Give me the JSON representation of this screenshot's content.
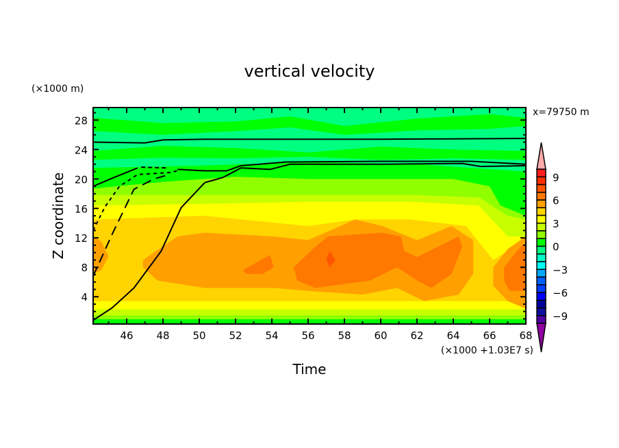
{
  "chart_data": {
    "type": "contour",
    "title": "vertical velocity",
    "xlabel": "Time",
    "ylabel": "Z coordinate",
    "x_unit_note": "(×1000 +1.03E7 s)",
    "y_unit_note": "(×1000 m)",
    "location_note": "x=79750 m",
    "xlim": [
      44.15,
      68
    ],
    "ylim": [
      0.3,
      29.7
    ],
    "x_ticks": [
      46,
      48,
      50,
      52,
      54,
      56,
      58,
      60,
      62,
      64,
      66,
      68
    ],
    "y_ticks": [
      4,
      8,
      12,
      16,
      20,
      24,
      28
    ],
    "x_tick_labels": [
      "46",
      "48",
      "50",
      "52",
      "54",
      "56",
      "58",
      "60",
      "62",
      "64",
      "66",
      "68"
    ],
    "y_tick_labels": [
      "4",
      "8",
      "12",
      "16",
      "20",
      "24",
      "28"
    ],
    "colorbar": {
      "levels_top_down": [
        10,
        9,
        8,
        7,
        6,
        5,
        4,
        3,
        2,
        1,
        0,
        -1,
        -2,
        -3,
        -4,
        -5,
        -6,
        -7,
        -8,
        -9,
        -10
      ],
      "colors_top_down": [
        "#ff2020",
        "#ff3000",
        "#ff5500",
        "#ff7800",
        "#ffa000",
        "#ffd400",
        "#ffff00",
        "#c8ff00",
        "#90ff00",
        "#00ff00",
        "#00ff80",
        "#00ffc8",
        "#00ffff",
        "#00aaff",
        "#0060ff",
        "#0040ff",
        "#0000ff",
        "#0000a0",
        "#1010a0",
        "#5000a0"
      ],
      "over_color": "#ffaaaa",
      "under_color": "#9000a0",
      "labels": [
        "9",
        "6",
        "3",
        "0",
        "−3",
        "−6",
        "−9"
      ],
      "label_values": [
        9,
        6,
        3,
        0,
        -3,
        -6,
        -9
      ]
    },
    "background_value_color": "#00ff00",
    "filled_regions": [
      {
        "value": "0..1",
        "color": "#00ff80",
        "top": [
          [
            44.15,
            29.7
          ],
          [
            68,
            29.7
          ]
        ],
        "bottom": [
          [
            44.15,
            21.5
          ],
          [
            50,
            21.8
          ],
          [
            56,
            22.3
          ],
          [
            62,
            22
          ],
          [
            68,
            21
          ]
        ]
      },
      {
        "value": "-1..0 patch",
        "color": "#00ff00",
        "top": [
          [
            44.15,
            28.3
          ],
          [
            48,
            27.6
          ],
          [
            52,
            27.8
          ],
          [
            55,
            28.5
          ],
          [
            58,
            27.2
          ],
          [
            62,
            28.2
          ],
          [
            66,
            28.8
          ],
          [
            68,
            28.3
          ]
        ],
        "bottom": [
          [
            44.15,
            26.5
          ],
          [
            48,
            26.0
          ],
          [
            52,
            26.5
          ],
          [
            55,
            27
          ],
          [
            58,
            26
          ],
          [
            62,
            26.6
          ],
          [
            66,
            26.8
          ],
          [
            68,
            27.2
          ]
        ]
      },
      {
        "value": "-1..0 patch",
        "color": "#00ff00",
        "top": [
          [
            44.15,
            23.8
          ],
          [
            48,
            24.5
          ],
          [
            52,
            24.2
          ],
          [
            56,
            23.6
          ],
          [
            60,
            24.4
          ],
          [
            64,
            24
          ],
          [
            68,
            23.8
          ]
        ],
        "bottom": [
          [
            44.15,
            22.6
          ],
          [
            48,
            22.9
          ],
          [
            52,
            22.8
          ],
          [
            56,
            23
          ],
          [
            60,
            22.6
          ],
          [
            64,
            22.8
          ],
          [
            68,
            22.6
          ]
        ]
      },
      {
        "value": "1..2",
        "color": "#90ff00",
        "top": [
          [
            44.15,
            18.7
          ],
          [
            48,
            19.6
          ],
          [
            52,
            20.3
          ],
          [
            56,
            20
          ],
          [
            60,
            20
          ],
          [
            64,
            20
          ],
          [
            66,
            19
          ],
          [
            66.6,
            16.4
          ],
          [
            68,
            15
          ]
        ],
        "bottom": [
          [
            44.15,
            0.95
          ],
          [
            68,
            0.95
          ]
        ]
      },
      {
        "value": "2..3",
        "color": "#c8ff00",
        "top": [
          [
            44.15,
            17.8
          ],
          [
            50,
            17.8
          ],
          [
            56,
            17.8
          ],
          [
            62,
            17.8
          ],
          [
            65.4,
            17.5
          ],
          [
            67,
            15
          ],
          [
            68,
            14.5
          ]
        ],
        "bottom": [
          [
            44.15,
            1.5
          ],
          [
            68,
            1.5
          ]
        ]
      },
      {
        "value": "3..4",
        "color": "#ffff00",
        "top": [
          [
            44.15,
            16.4
          ],
          [
            50,
            16.6
          ],
          [
            56,
            16.9
          ],
          [
            61.7,
            16.9
          ],
          [
            65.4,
            16.4
          ],
          [
            67,
            12.2
          ],
          [
            68,
            12.2
          ]
        ],
        "bottom": [
          [
            44.15,
            2.3
          ],
          [
            68,
            2.3
          ]
        ]
      },
      {
        "value": "4..5",
        "color": "#ffd400",
        "top": [
          [
            44.15,
            14.5
          ],
          [
            50.3,
            15
          ],
          [
            56,
            13.6
          ],
          [
            58.6,
            14.5
          ],
          [
            61.7,
            14.5
          ],
          [
            64.7,
            13.6
          ],
          [
            66.2,
            9
          ],
          [
            67.7,
            11.3
          ],
          [
            68,
            11.3
          ]
        ],
        "bottom": [
          [
            44.15,
            3.4
          ],
          [
            68,
            3.4
          ]
        ]
      },
      {
        "value": "5..6",
        "color": "#ffa000",
        "polygon": [
          [
            44.15,
            12.2
          ],
          [
            44.6,
            11.5
          ],
          [
            45,
            9.5
          ],
          [
            44.6,
            7.6
          ],
          [
            44.15,
            7.1
          ]
        ]
      },
      {
        "value": "5..6",
        "color": "#ffa000",
        "polygon": [
          [
            46.9,
            9
          ],
          [
            48.8,
            12.2
          ],
          [
            50.3,
            12.7
          ],
          [
            54.1,
            12.2
          ],
          [
            56,
            11.7
          ],
          [
            58.6,
            14.5
          ],
          [
            60.1,
            13.6
          ],
          [
            62,
            11.7
          ],
          [
            63.9,
            13.6
          ],
          [
            65.1,
            11.7
          ],
          [
            65.1,
            7.1
          ],
          [
            64.3,
            4.3
          ],
          [
            62.4,
            3.4
          ],
          [
            60.9,
            5.2
          ],
          [
            59,
            4.3
          ],
          [
            56,
            4.8
          ],
          [
            54.1,
            5.2
          ],
          [
            50.3,
            5.2
          ],
          [
            47.7,
            6.2
          ],
          [
            46.9,
            8
          ]
        ]
      },
      {
        "value": "5..6",
        "color": "#ffa000",
        "polygon": [
          [
            66.2,
            8
          ],
          [
            67,
            10.5
          ],
          [
            68,
            12.2
          ],
          [
            68,
            2.4
          ],
          [
            67,
            3.4
          ],
          [
            66.2,
            5.5
          ]
        ]
      },
      {
        "value": "6..7",
        "color": "#ff7800",
        "polygon": [
          [
            52.4,
            7.6
          ],
          [
            53.4,
            9
          ],
          [
            53.9,
            9.7
          ],
          [
            54.1,
            8
          ],
          [
            53.5,
            7.1
          ],
          [
            52.6,
            7.1
          ]
        ]
      },
      {
        "value": "6..7",
        "color": "#ff7800",
        "polygon": [
          [
            55.2,
            8
          ],
          [
            56.4,
            10.8
          ],
          [
            57.1,
            12.2
          ],
          [
            60.1,
            12.7
          ],
          [
            61.1,
            12.2
          ],
          [
            61.3,
            10.2
          ],
          [
            62,
            9.4
          ],
          [
            64.3,
            12.2
          ],
          [
            64.5,
            10.8
          ],
          [
            63.9,
            7.1
          ],
          [
            62.8,
            5.2
          ],
          [
            62,
            6.2
          ],
          [
            60.9,
            8
          ],
          [
            59.4,
            6.2
          ],
          [
            56.4,
            5.2
          ],
          [
            55.4,
            6.2
          ]
        ]
      },
      {
        "value": "6..7",
        "color": "#ff7800",
        "polygon": [
          [
            66.8,
            8
          ],
          [
            67.7,
            10.8
          ],
          [
            68,
            11.3
          ],
          [
            68,
            4.8
          ],
          [
            67.1,
            4.8
          ],
          [
            66.8,
            6.2
          ]
        ]
      },
      {
        "value": "7..8",
        "color": "#ff5500",
        "polygon": [
          [
            57.0,
            9.1
          ],
          [
            57.2,
            10.2
          ],
          [
            57.5,
            9.0
          ],
          [
            57.2,
            8.0
          ]
        ]
      }
    ],
    "contour_lines": [
      {
        "style": "solid",
        "points": [
          [
            44.15,
            25
          ],
          [
            47,
            24.9
          ],
          [
            48,
            25.3
          ],
          [
            50.3,
            25.4
          ],
          [
            60,
            25.4
          ],
          [
            68,
            25.5
          ]
        ]
      },
      {
        "style": "solid",
        "points": [
          [
            44.15,
            19.0
          ],
          [
            45.2,
            20.1
          ],
          [
            46.6,
            21.5
          ]
        ]
      },
      {
        "style": "dashed",
        "points": [
          [
            46.8,
            21.6
          ],
          [
            48.2,
            21.5
          ]
        ]
      },
      {
        "style": "solid",
        "points": [
          [
            48.8,
            21.3
          ],
          [
            50.3,
            21.1
          ],
          [
            51.5,
            21.1
          ],
          [
            52.3,
            21.8
          ],
          [
            54.8,
            22.3
          ],
          [
            60,
            22.4
          ],
          [
            65,
            22.4
          ],
          [
            68,
            22.0
          ]
        ]
      },
      {
        "style": "solid",
        "points": [
          [
            50.3,
            19.5
          ],
          [
            51.3,
            20.2
          ],
          [
            52.3,
            21.5
          ],
          [
            53.9,
            21.3
          ],
          [
            55,
            22.0
          ],
          [
            60,
            22.0
          ],
          [
            64.5,
            22.1
          ],
          [
            65.5,
            21.7
          ],
          [
            68,
            21.8
          ]
        ]
      },
      {
        "style": "solid",
        "points": [
          [
            44.15,
            0.8
          ],
          [
            45.2,
            2.5
          ],
          [
            46.4,
            5.2
          ],
          [
            47.9,
            10.2
          ],
          [
            49.0,
            16.1
          ],
          [
            50.3,
            19.5
          ]
        ]
      },
      {
        "style": "longdash",
        "points": [
          [
            44.15,
            6.8
          ],
          [
            45.2,
            12.5
          ],
          [
            46.4,
            18.6
          ],
          [
            47.5,
            20.0
          ],
          [
            48.2,
            20.5
          ]
        ]
      },
      {
        "style": "shortdash",
        "points": [
          [
            44.15,
            13.0
          ],
          [
            44.8,
            16.2
          ],
          [
            45.6,
            19.0
          ],
          [
            46.6,
            20.6
          ],
          [
            48.5,
            20.9
          ],
          [
            49.0,
            21.3
          ]
        ]
      }
    ]
  }
}
